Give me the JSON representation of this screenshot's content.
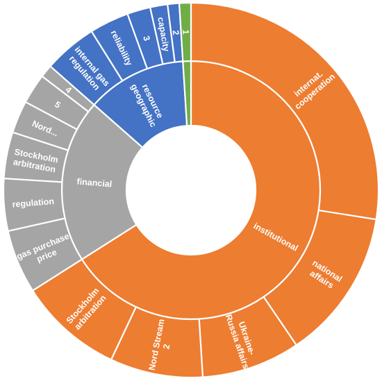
{
  "chart_data": {
    "type": "sunburst",
    "colors": {
      "institutional": "#ED7D31",
      "resource geographic": "#4472C4",
      "financial": "#A5A5A5",
      "tiny": "#70AD47"
    },
    "inner": [
      {
        "name": "institutional",
        "label": "institutional",
        "value": 66.0,
        "color": "#ED7D31"
      },
      {
        "name": "financial",
        "label": "financial",
        "value": 20.5,
        "color": "#A5A5A5"
      },
      {
        "name": "resource geographic",
        "label": "resource\ngeographic",
        "value": 12.5,
        "color": "#4472C4"
      },
      {
        "name": "",
        "label": "",
        "value": 1.0,
        "color": "#70AD47"
      }
    ],
    "outer": [
      {
        "parent": "institutional",
        "label": "internat.\ncooperation",
        "value": 27.5,
        "color": "#ED7D31"
      },
      {
        "parent": "institutional",
        "label": "national\naffairs",
        "value": 13.0,
        "color": "#ED7D31"
      },
      {
        "parent": "institutional",
        "label": "Ukraine-\nRussia affairs",
        "value": 8.5,
        "color": "#ED7D31"
      },
      {
        "parent": "institutional",
        "label": "Nord Stream\n2",
        "value": 8.0,
        "color": "#ED7D31"
      },
      {
        "parent": "institutional",
        "label": "Stockholm\narbitration",
        "value": 9.0,
        "color": "#ED7D31"
      },
      {
        "parent": "financial",
        "label": "gas purchase\nprice",
        "value": 5.5,
        "color": "#A5A5A5"
      },
      {
        "parent": "financial",
        "label": "regulation",
        "value": 4.5,
        "color": "#A5A5A5"
      },
      {
        "parent": "financial",
        "label": "Stockholm\narbitration",
        "value": 4.0,
        "color": "#A5A5A5"
      },
      {
        "parent": "financial",
        "label": "Nord...",
        "value": 2.8,
        "color": "#A5A5A5"
      },
      {
        "parent": "financial",
        "label": "5",
        "value": 2.6,
        "color": "#A5A5A5"
      },
      {
        "parent": "financial",
        "label": "4",
        "value": 1.1,
        "color": "#A5A5A5"
      },
      {
        "parent": "resource geographic",
        "label": "internal gas\nregulation",
        "value": 4.6,
        "color": "#4472C4"
      },
      {
        "parent": "resource geographic",
        "label": "reliability",
        "value": 3.4,
        "color": "#4472C4"
      },
      {
        "parent": "resource geographic",
        "label": "3",
        "value": 2.0,
        "color": "#4472C4"
      },
      {
        "parent": "resource geographic",
        "label": "capacity",
        "value": 1.5,
        "color": "#4472C4"
      },
      {
        "parent": "resource geographic",
        "label": "2",
        "value": 1.0,
        "color": "#4472C4"
      },
      {
        "parent": "",
        "label": "1",
        "value": 1.0,
        "color": "#70AD47"
      }
    ]
  }
}
